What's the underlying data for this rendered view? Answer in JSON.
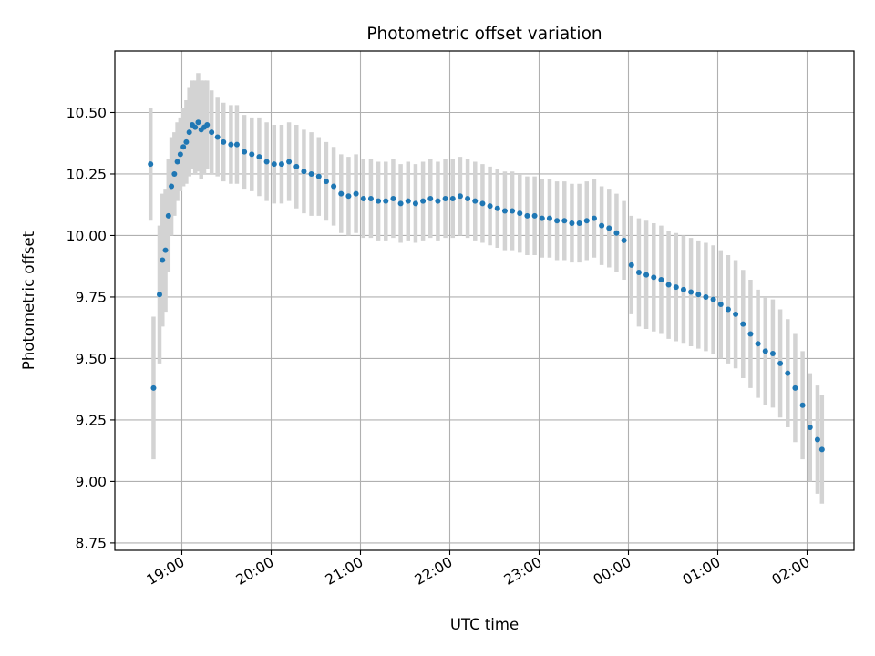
{
  "chart_data": {
    "type": "scatter",
    "title": "Photometric offset variation",
    "xlabel": "UTC time",
    "ylabel": "Photometric offset",
    "x_ticks": [
      "19:00",
      "20:00",
      "21:00",
      "22:00",
      "23:00",
      "00:00",
      "01:00",
      "02:00"
    ],
    "y_ticks": [
      "8.75",
      "9.00",
      "9.25",
      "9.50",
      "9.75",
      "10.00",
      "10.25",
      "10.50"
    ],
    "xlim": [
      "18:15",
      "02:32"
    ],
    "ylim": [
      8.72,
      10.75
    ],
    "grid": true,
    "legend": "none",
    "colors": {
      "points": "#1f77b4",
      "error_bars": "#d3d3d3",
      "grid": "#b0b0b0"
    },
    "series": [
      {
        "x": [
          "18:39",
          "18:41",
          "18:45",
          "18:47",
          "18:49",
          "18:51",
          "18:53",
          "18:55",
          "18:57",
          "18:59",
          "19:01",
          "19:03",
          "19:05",
          "19:07",
          "19:09",
          "19:11",
          "19:13",
          "19:15",
          "19:17",
          "19:20",
          "19:24",
          "19:28",
          "19:33",
          "19:37",
          "19:42",
          "19:47",
          "19:52",
          "19:57",
          "20:02",
          "20:07",
          "20:12",
          "20:17",
          "20:22",
          "20:27",
          "20:32",
          "20:37",
          "20:42",
          "20:47",
          "20:52",
          "20:57",
          "21:02",
          "21:07",
          "21:12",
          "21:17",
          "21:22",
          "21:27",
          "21:32",
          "21:37",
          "21:42",
          "21:47",
          "21:52",
          "21:57",
          "22:02",
          "22:07",
          "22:12",
          "22:17",
          "22:22",
          "22:27",
          "22:32",
          "22:37",
          "22:42",
          "22:47",
          "22:52",
          "22:57",
          "23:02",
          "23:07",
          "23:12",
          "23:17",
          "23:22",
          "23:27",
          "23:32",
          "23:37",
          "23:42",
          "23:47",
          "23:52",
          "23:57",
          "00:02",
          "00:07",
          "00:12",
          "00:17",
          "00:22",
          "00:27",
          "00:32",
          "00:37",
          "00:42",
          "00:47",
          "00:52",
          "00:57",
          "01:02",
          "01:07",
          "01:12",
          "01:17",
          "01:22",
          "01:27",
          "01:32",
          "01:37",
          "01:42",
          "01:47",
          "01:52",
          "01:57",
          "02:02",
          "02:07",
          "02:10"
        ],
        "y": [
          10.29,
          9.38,
          9.76,
          9.9,
          9.94,
          10.08,
          10.2,
          10.25,
          10.3,
          10.33,
          10.36,
          10.38,
          10.42,
          10.45,
          10.44,
          10.46,
          10.43,
          10.44,
          10.45,
          10.42,
          10.4,
          10.38,
          10.37,
          10.37,
          10.34,
          10.33,
          10.32,
          10.3,
          10.29,
          10.29,
          10.3,
          10.28,
          10.26,
          10.25,
          10.24,
          10.22,
          10.2,
          10.17,
          10.16,
          10.17,
          10.15,
          10.15,
          10.14,
          10.14,
          10.15,
          10.13,
          10.14,
          10.13,
          10.14,
          10.15,
          10.14,
          10.15,
          10.15,
          10.16,
          10.15,
          10.14,
          10.13,
          10.12,
          10.11,
          10.1,
          10.1,
          10.09,
          10.08,
          10.08,
          10.07,
          10.07,
          10.06,
          10.06,
          10.05,
          10.05,
          10.06,
          10.07,
          10.04,
          10.03,
          10.01,
          9.98,
          9.88,
          9.85,
          9.84,
          9.83,
          9.82,
          9.8,
          9.79,
          9.78,
          9.77,
          9.76,
          9.75,
          9.74,
          9.72,
          9.7,
          9.68,
          9.64,
          9.6,
          9.56,
          9.53,
          9.52,
          9.48,
          9.44,
          9.38,
          9.31,
          9.22,
          9.17,
          9.13
        ],
        "error": [
          0.23,
          0.29,
          0.28,
          0.27,
          0.25,
          0.23,
          0.2,
          0.17,
          0.16,
          0.15,
          0.16,
          0.17,
          0.18,
          0.18,
          0.19,
          0.2,
          0.2,
          0.19,
          0.18,
          0.17,
          0.16,
          0.16,
          0.16,
          0.16,
          0.15,
          0.15,
          0.16,
          0.16,
          0.16,
          0.16,
          0.16,
          0.17,
          0.17,
          0.17,
          0.16,
          0.16,
          0.16,
          0.16,
          0.16,
          0.16,
          0.16,
          0.16,
          0.16,
          0.16,
          0.16,
          0.16,
          0.16,
          0.16,
          0.16,
          0.16,
          0.16,
          0.16,
          0.16,
          0.16,
          0.16,
          0.16,
          0.16,
          0.16,
          0.16,
          0.16,
          0.16,
          0.16,
          0.16,
          0.16,
          0.16,
          0.16,
          0.16,
          0.16,
          0.16,
          0.16,
          0.16,
          0.16,
          0.16,
          0.16,
          0.16,
          0.16,
          0.2,
          0.22,
          0.22,
          0.22,
          0.22,
          0.22,
          0.22,
          0.22,
          0.22,
          0.22,
          0.22,
          0.22,
          0.22,
          0.22,
          0.22,
          0.22,
          0.22,
          0.22,
          0.22,
          0.22,
          0.22,
          0.22,
          0.22,
          0.22,
          0.22,
          0.22,
          0.22
        ]
      }
    ]
  }
}
